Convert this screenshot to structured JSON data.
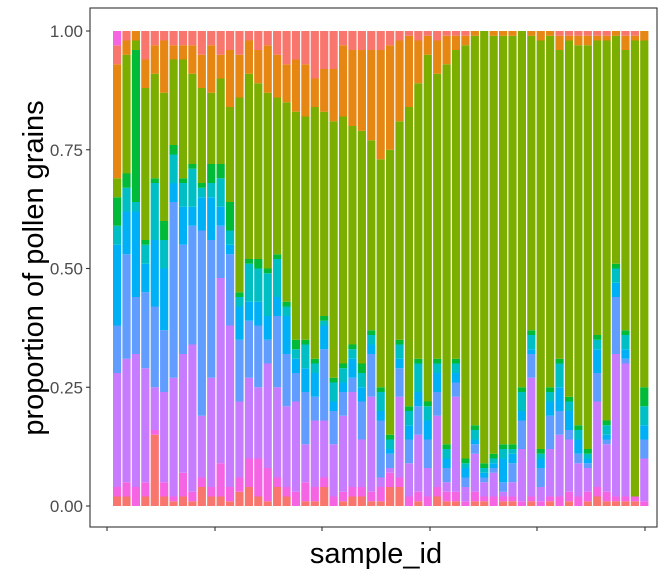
{
  "chart_data": {
    "type": "bar",
    "stacked": true,
    "xlabel": "sample_id",
    "ylabel": "proportion of pollen grains",
    "ylim": [
      0,
      1
    ],
    "yticks": [
      0.0,
      0.25,
      0.5,
      0.75,
      1.0
    ],
    "ytick_labels": [
      "0.00",
      "0.25",
      "0.50",
      "0.75",
      "1.00"
    ],
    "legend": "none",
    "grid": false,
    "series_colors": [
      "#F8766D",
      "#F564E3",
      "#C77CFF",
      "#619CFF",
      "#00B0F6",
      "#00BFC4",
      "#00BA38",
      "#7CAE00",
      "#E68613"
    ],
    "cumulative_tops": [
      [
        0.02,
        0.04,
        0.28,
        0.38,
        0.55,
        0.59,
        0.65,
        0.69,
        0.93,
        0.97,
        1.0
      ],
      [
        0.02,
        0.05,
        0.31,
        0.53,
        0.62,
        0.67,
        0.7,
        0.95,
        0.98,
        1.0
      ],
      [
        0.0,
        0.04,
        0.32,
        0.44,
        0.62,
        0.64,
        0.96,
        0.98,
        1.0
      ],
      [
        0.02,
        0.05,
        0.29,
        0.45,
        0.51,
        0.55,
        0.56,
        0.88,
        0.94,
        1.0
      ],
      [
        0.15,
        0.16,
        0.25,
        0.42,
        0.56,
        0.68,
        0.69,
        0.91,
        0.97,
        1.0
      ],
      [
        0.02,
        0.05,
        0.24,
        0.37,
        0.5,
        0.56,
        0.6,
        0.87,
        0.98,
        1.0
      ],
      [
        0.01,
        0.02,
        0.27,
        0.64,
        0.68,
        0.74,
        0.76,
        0.94,
        0.97,
        1.0
      ],
      [
        0.02,
        0.07,
        0.32,
        0.55,
        0.63,
        0.68,
        0.69,
        0.94,
        0.97,
        1.0
      ],
      [
        0.01,
        0.03,
        0.34,
        0.59,
        0.63,
        0.71,
        0.72,
        0.91,
        0.97,
        1.0
      ],
      [
        0.04,
        0.06,
        0.19,
        0.58,
        0.65,
        0.67,
        0.68,
        0.88,
        0.95,
        1.0
      ],
      [
        0.02,
        0.04,
        0.27,
        0.56,
        0.65,
        0.68,
        0.72,
        0.87,
        0.97,
        1.0
      ],
      [
        0.02,
        0.09,
        0.48,
        0.59,
        0.63,
        0.69,
        0.72,
        0.9,
        0.95,
        1.0
      ],
      [
        0.01,
        0.04,
        0.38,
        0.53,
        0.55,
        0.58,
        0.64,
        0.84,
        0.96,
        1.0
      ],
      [
        0.03,
        0.06,
        0.22,
        0.35,
        0.42,
        0.44,
        0.45,
        0.86,
        0.95,
        1.0
      ],
      [
        0.04,
        0.1,
        0.27,
        0.39,
        0.43,
        0.51,
        0.52,
        0.91,
        0.98,
        1.0
      ],
      [
        0.02,
        0.1,
        0.25,
        0.38,
        0.43,
        0.5,
        0.52,
        0.89,
        0.96,
        1.0
      ],
      [
        0.01,
        0.08,
        0.3,
        0.35,
        0.4,
        0.49,
        0.5,
        0.87,
        0.97,
        1.0
      ],
      [
        0.04,
        0.06,
        0.25,
        0.4,
        0.44,
        0.52,
        0.53,
        0.86,
        0.95,
        1.0
      ],
      [
        0.02,
        0.04,
        0.21,
        0.32,
        0.4,
        0.42,
        0.43,
        0.85,
        0.93,
        1.0
      ],
      [
        0.0,
        0.03,
        0.22,
        0.28,
        0.31,
        0.33,
        0.35,
        0.83,
        0.94,
        1.0
      ],
      [
        0.01,
        0.05,
        0.13,
        0.24,
        0.29,
        0.34,
        0.35,
        0.82,
        0.93,
        1.0
      ],
      [
        0.01,
        0.04,
        0.18,
        0.23,
        0.28,
        0.3,
        0.31,
        0.84,
        0.9,
        1.0
      ],
      [
        0.04,
        0.06,
        0.18,
        0.33,
        0.38,
        0.39,
        0.4,
        0.83,
        0.92,
        1.0
      ],
      [
        0.0,
        0.02,
        0.13,
        0.2,
        0.22,
        0.26,
        0.27,
        0.81,
        0.92,
        1.0
      ],
      [
        0.01,
        0.03,
        0.19,
        0.24,
        0.26,
        0.29,
        0.3,
        0.82,
        0.97,
        1.0
      ],
      [
        0.02,
        0.04,
        0.24,
        0.27,
        0.31,
        0.33,
        0.34,
        0.8,
        0.96,
        1.0
      ],
      [
        0.02,
        0.04,
        0.14,
        0.22,
        0.25,
        0.28,
        0.3,
        0.79,
        0.96,
        1.0
      ],
      [
        0.01,
        0.03,
        0.23,
        0.32,
        0.34,
        0.36,
        0.37,
        0.77,
        0.96,
        1.0
      ],
      [
        0.01,
        0.04,
        0.06,
        0.18,
        0.2,
        0.24,
        0.25,
        0.73,
        0.96,
        1.0
      ],
      [
        0.04,
        0.07,
        0.08,
        0.11,
        0.12,
        0.14,
        0.15,
        0.75,
        0.97,
        1.0
      ],
      [
        0.04,
        0.06,
        0.23,
        0.29,
        0.31,
        0.34,
        0.35,
        0.81,
        0.98,
        1.0
      ],
      [
        0.0,
        0.02,
        0.09,
        0.14,
        0.17,
        0.2,
        0.21,
        0.84,
        0.99,
        1.0
      ],
      [
        0.01,
        0.03,
        0.15,
        0.21,
        0.24,
        0.3,
        0.31,
        0.89,
        0.98,
        1.0
      ],
      [
        0.0,
        0.02,
        0.08,
        0.14,
        0.18,
        0.21,
        0.22,
        0.95,
        0.99,
        1.0
      ],
      [
        0.02,
        0.04,
        0.19,
        0.24,
        0.28,
        0.3,
        0.31,
        0.91,
        0.98,
        1.0
      ],
      [
        0.01,
        0.03,
        0.05,
        0.08,
        0.1,
        0.12,
        0.13,
        0.93,
        0.99,
        1.0
      ],
      [
        0.01,
        0.03,
        0.23,
        0.26,
        0.28,
        0.3,
        0.31,
        0.96,
        0.99,
        1.0
      ],
      [
        0.0,
        0.01,
        0.04,
        0.06,
        0.08,
        0.09,
        0.1,
        0.97,
        0.99,
        1.0
      ],
      [
        0.01,
        0.03,
        0.11,
        0.13,
        0.14,
        0.16,
        0.17,
        0.99,
        1.0
      ],
      [
        0.01,
        0.02,
        0.05,
        0.06,
        0.07,
        0.08,
        0.09,
        1.0
      ],
      [
        0.0,
        0.02,
        0.07,
        0.08,
        0.09,
        0.1,
        0.11,
        0.99,
        1.0
      ],
      [
        0.01,
        0.02,
        0.03,
        0.05,
        0.1,
        0.12,
        0.13,
        0.99,
        1.0
      ],
      [
        0.01,
        0.02,
        0.05,
        0.09,
        0.11,
        0.12,
        0.13,
        0.99,
        1.0
      ],
      [
        0.0,
        0.01,
        0.12,
        0.18,
        0.2,
        0.24,
        0.25,
        1.0
      ],
      [
        0.01,
        0.02,
        0.27,
        0.32,
        0.33,
        0.36,
        0.37,
        0.99,
        1.0
      ],
      [
        0.0,
        0.01,
        0.04,
        0.08,
        0.1,
        0.11,
        0.12,
        0.98,
        1.0
      ],
      [
        0.01,
        0.02,
        0.12,
        0.19,
        0.22,
        0.24,
        0.25,
        0.99,
        1.0
      ],
      [
        0.0,
        0.02,
        0.15,
        0.2,
        0.25,
        0.3,
        0.31,
        0.96,
        0.99,
        1.0
      ],
      [
        0.01,
        0.03,
        0.14,
        0.16,
        0.2,
        0.22,
        0.23,
        0.98,
        0.99,
        1.0
      ],
      [
        0.0,
        0.02,
        0.09,
        0.11,
        0.14,
        0.16,
        0.17,
        0.97,
        0.99,
        1.0
      ],
      [
        0.01,
        0.03,
        0.08,
        0.09,
        0.1,
        0.11,
        0.12,
        0.97,
        0.99,
        1.0
      ],
      [
        0.02,
        0.04,
        0.22,
        0.28,
        0.33,
        0.35,
        0.36,
        0.98,
        0.99,
        1.0
      ],
      [
        0.01,
        0.03,
        0.13,
        0.14,
        0.15,
        0.17,
        0.18,
        0.98,
        0.99,
        1.0
      ],
      [
        0.01,
        0.02,
        0.32,
        0.44,
        0.47,
        0.5,
        0.51,
        0.99,
        1.0
      ],
      [
        0.01,
        0.02,
        0.3,
        0.31,
        0.33,
        0.36,
        0.37,
        0.96,
        0.99,
        1.0
      ],
      [
        0.01,
        0.02,
        0.02,
        0.02,
        0.02,
        0.02,
        0.02,
        0.98,
        0.99,
        1.0
      ],
      [
        0.0,
        0.01,
        0.1,
        0.14,
        0.17,
        0.21,
        0.25,
        0.98,
        1.0
      ]
    ]
  }
}
